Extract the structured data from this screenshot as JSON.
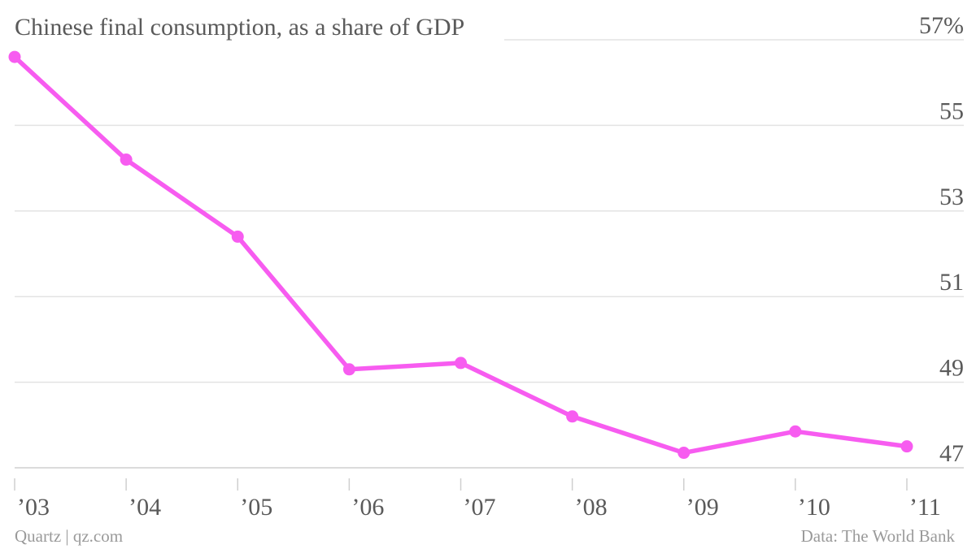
{
  "chart_data": {
    "type": "line",
    "title": "Chinese final consumption, as a share of GDP",
    "categories": [
      "’03",
      "’04",
      "’05",
      "’06",
      "’07",
      "’08",
      "’09",
      "’10",
      "’11"
    ],
    "series": [
      {
        "values": [
          56.6,
          54.2,
          52.4,
          49.3,
          49.45,
          48.2,
          47.35,
          47.85,
          47.5
        ],
        "color": "#f75cf0"
      }
    ],
    "ylim": [
      46.4,
      57.5
    ],
    "y_ticks": [
      {
        "value": 57,
        "label": "57%"
      },
      {
        "value": 55,
        "label": "55"
      },
      {
        "value": 53,
        "label": "53"
      },
      {
        "value": 51,
        "label": "51"
      },
      {
        "value": 49,
        "label": "49"
      },
      {
        "value": 47,
        "label": "47"
      }
    ],
    "grid": true,
    "y_axis_position": "right"
  },
  "footer": {
    "source_left": "Quartz | qz.com",
    "source_right": "Data: The World Bank"
  }
}
